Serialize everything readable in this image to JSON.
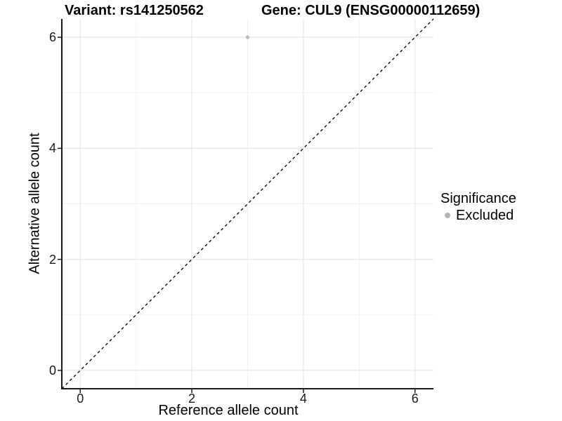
{
  "figure": {
    "variant_title": "Variant: rs141250562",
    "gene_title": "Gene: CUL9 (ENSG00000112659)"
  },
  "axes": {
    "x_title": "Reference allele count",
    "y_title": "Alternative allele count"
  },
  "legend": {
    "title": "Significance",
    "items": [
      {
        "label": "Excluded",
        "marker_color": "#b5b5b5"
      }
    ]
  },
  "chart_data": {
    "type": "scatter",
    "title": "Variant: rs141250562 / Gene: CUL9 (ENSG00000112659)",
    "xlabel": "Reference allele count",
    "ylabel": "Alternative allele count",
    "xlim": [
      -0.33,
      6.33
    ],
    "ylim": [
      -0.33,
      6.33
    ],
    "x_ticks": [
      0,
      2,
      4,
      6
    ],
    "y_ticks": [
      0,
      2,
      4,
      6
    ],
    "x_minor_ticks": [
      1,
      3,
      5
    ],
    "y_minor_ticks": [
      1,
      3,
      5
    ],
    "grid": true,
    "legend_position": "right",
    "series": [
      {
        "name": "Excluded",
        "color": "#bdbdbd",
        "points": [
          [
            3,
            6
          ]
        ]
      }
    ],
    "reference_line": {
      "type": "identity y=x",
      "style": "dashed",
      "color": "#000000",
      "from": [
        -0.33,
        -0.33
      ],
      "to": [
        6.33,
        6.33
      ]
    }
  },
  "style": {
    "background": "#ffffff",
    "axis_line_color": "#1a1a1a",
    "major_grid_color": "#e7e7e7",
    "minor_grid_color": "#f2f2f2",
    "point_color": "#bdbdbd",
    "text_color": "#1a1a1a"
  }
}
